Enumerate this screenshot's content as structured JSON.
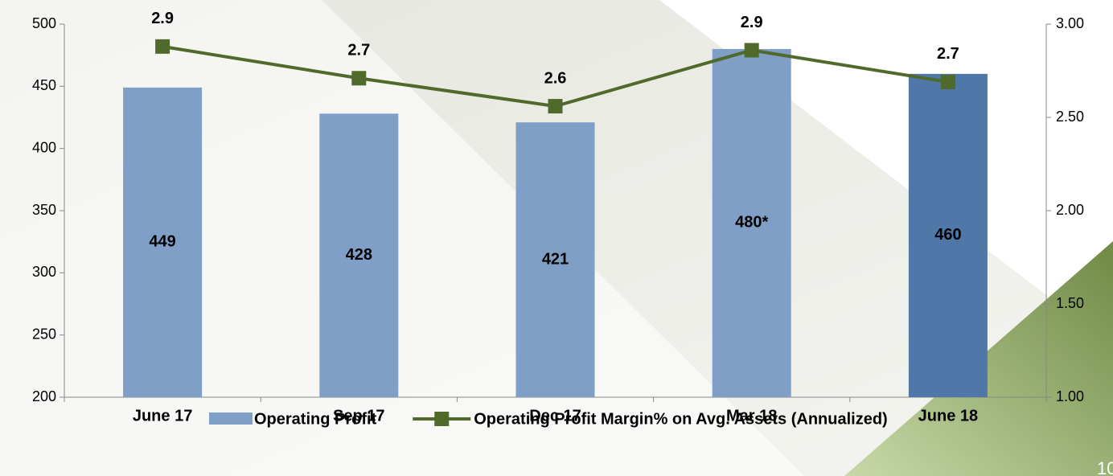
{
  "chart_data": {
    "type": "bar-line",
    "categories": [
      "June 17",
      "Sep 17",
      "Dec 17",
      "Mar 18",
      "June 18"
    ],
    "series": [
      {
        "name": "Operating Profit",
        "type": "bar",
        "colors": [
          "#7f9fc6",
          "#7f9fc6",
          "#7f9fc6",
          "#7f9fc6",
          "#4f78a9"
        ],
        "values": [
          449,
          428,
          421,
          480,
          460
        ],
        "value_labels": [
          "449",
          "428",
          "421",
          "480*",
          "460"
        ]
      },
      {
        "name": "Operating Profit Margin% on Avg. Assets (Annualized)",
        "type": "line",
        "axis": "y2",
        "color": "#4f6a2a",
        "values": [
          2.88,
          2.71,
          2.56,
          2.86,
          2.69
        ],
        "value_labels": [
          "2.9",
          "2.7",
          "2.6",
          "2.9",
          "2.7"
        ]
      }
    ],
    "ylim": [
      200,
      500
    ],
    "yticks": [
      200,
      250,
      300,
      350,
      400,
      450,
      500
    ],
    "y2lim": [
      1,
      3
    ],
    "y2ticks": [
      {
        "value": 1,
        "label": "1.00"
      },
      {
        "value": 1.5,
        "label": "1.50"
      },
      {
        "value": 2,
        "label": "2.00"
      },
      {
        "value": 2.5,
        "label": "2.50"
      },
      {
        "value": 3,
        "label": "3.00"
      }
    ],
    "legend": "bottom",
    "page_number": "10"
  }
}
